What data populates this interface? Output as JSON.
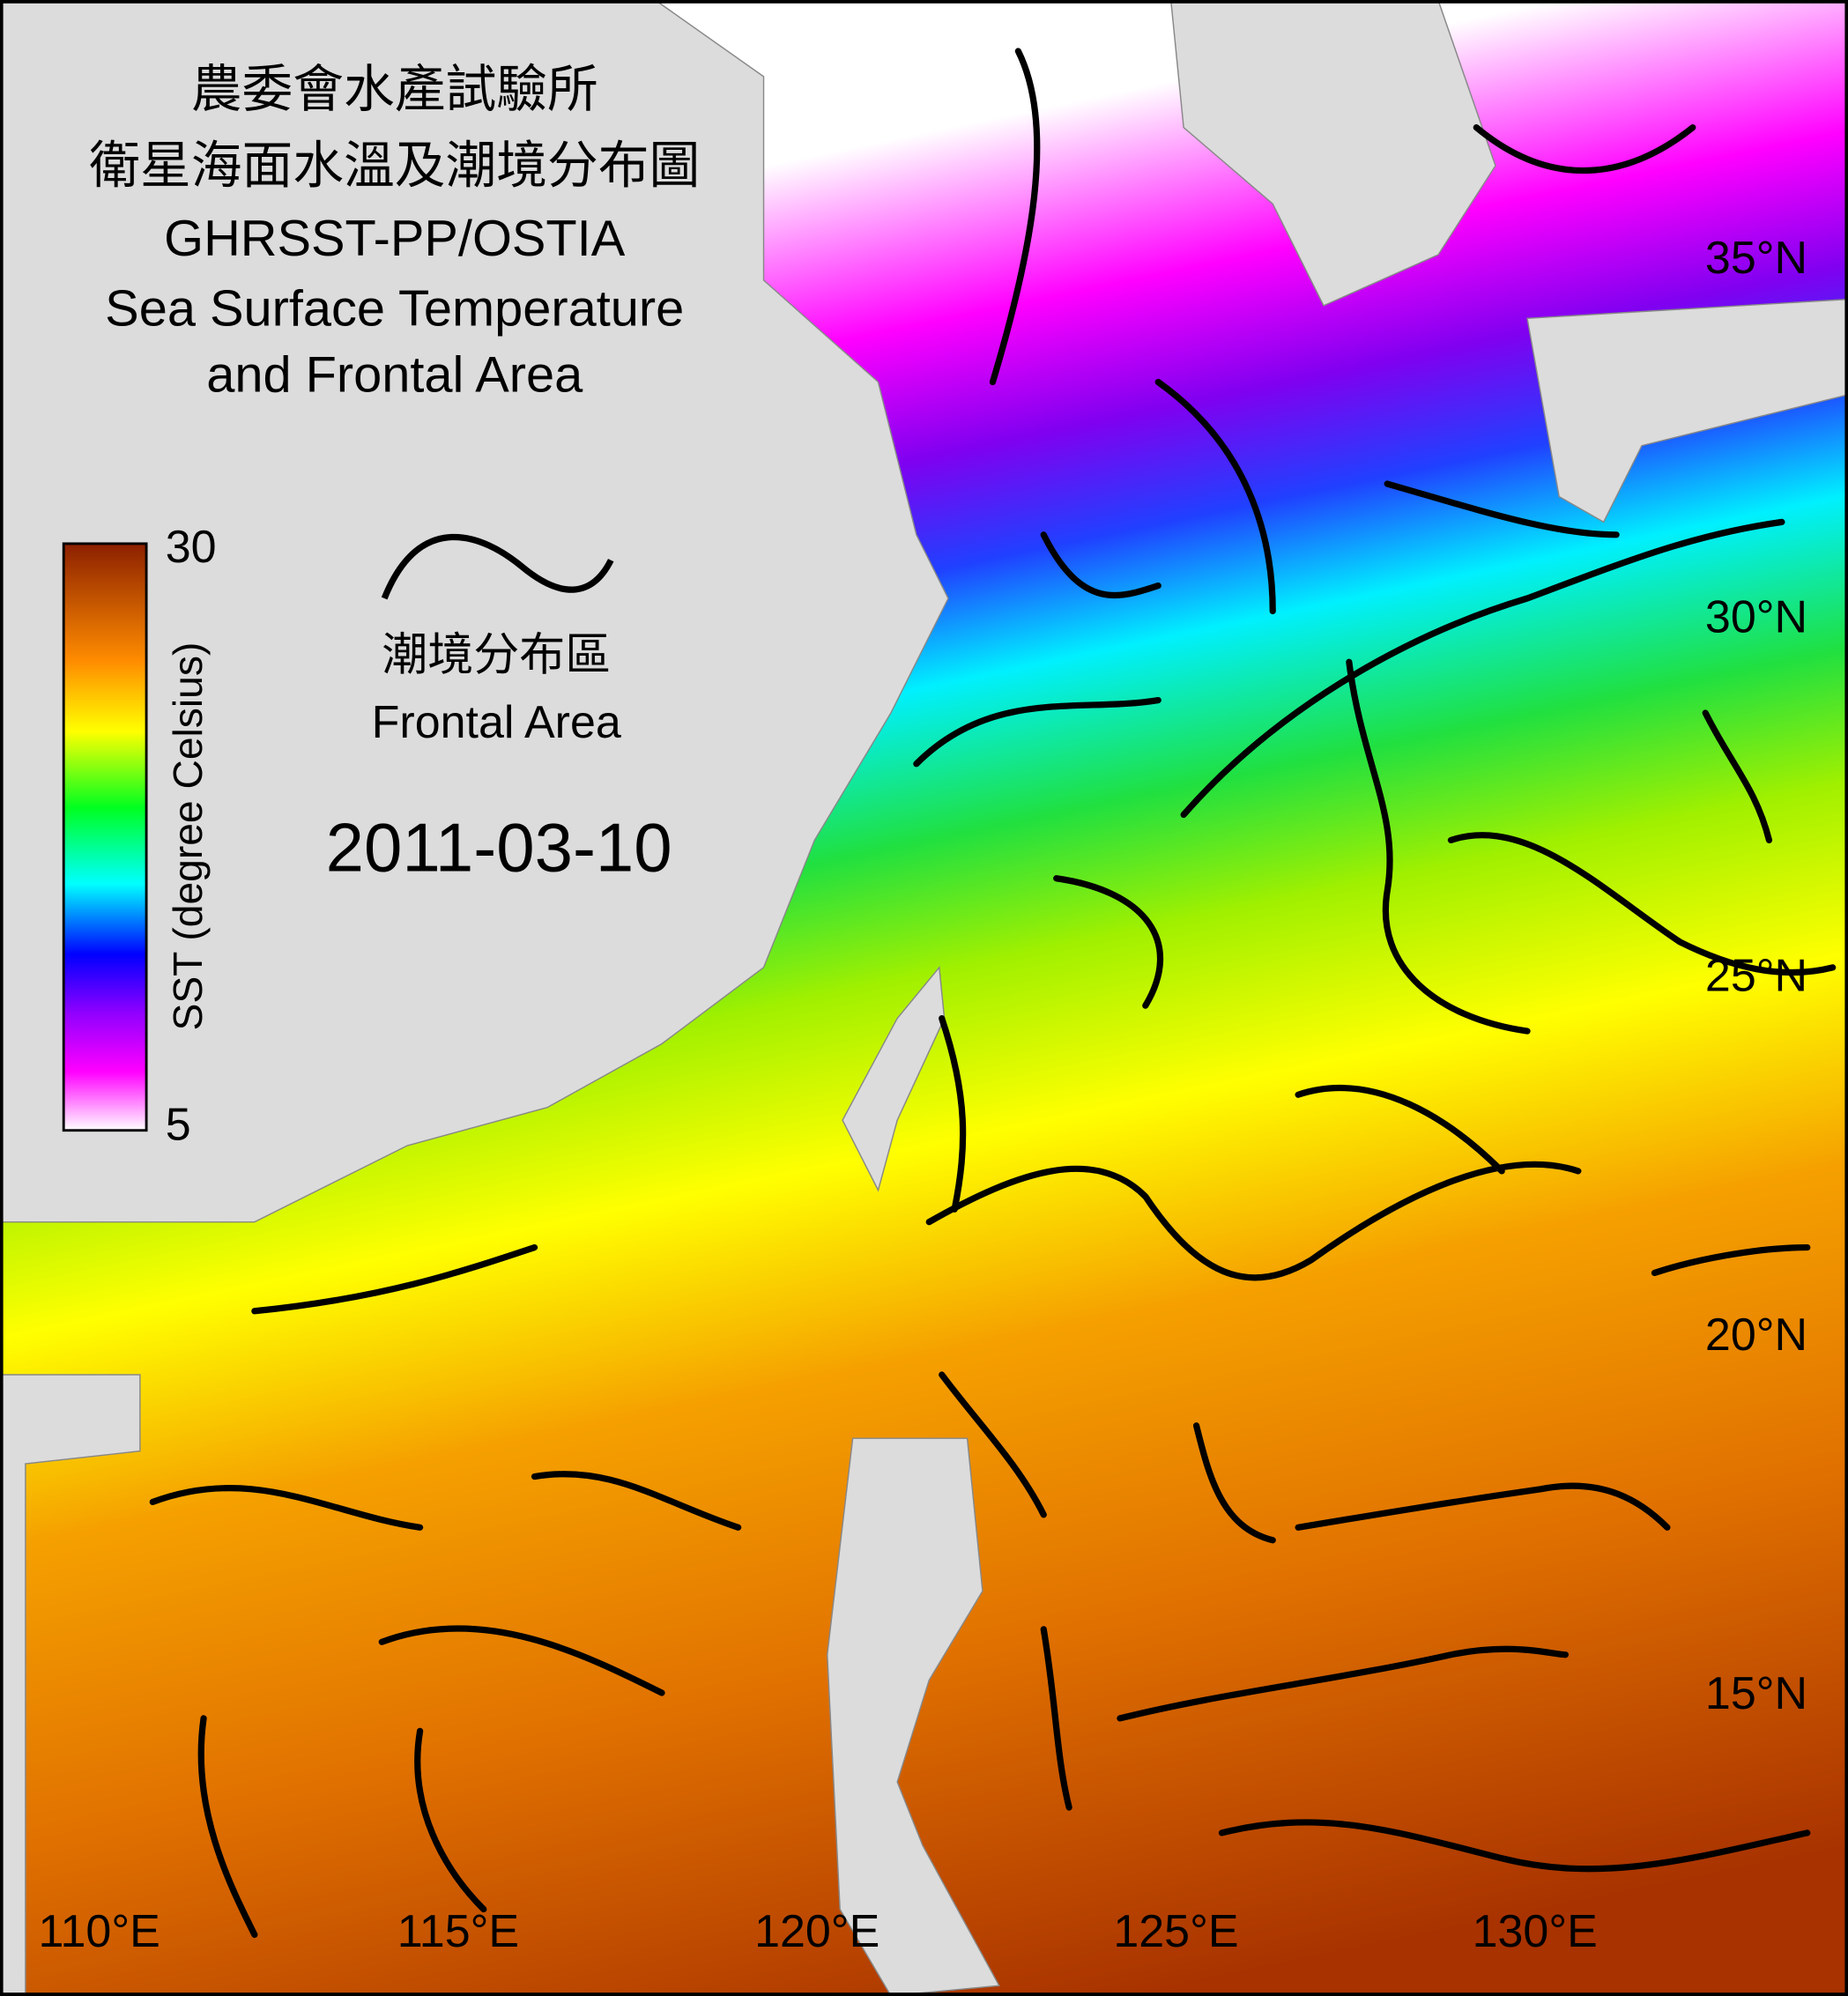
{
  "header": {
    "title_lines": [
      "農委會水產試驗所",
      "衛星海面水溫及潮境分布圖",
      "GHRSST-PP/OSTIA",
      "Sea Surface Temperature",
      "and Frontal Area"
    ]
  },
  "colorbar": {
    "max": 30,
    "min": 5,
    "label": "SST (degree Celsius)"
  },
  "legend": {
    "label_zh": "潮境分布區",
    "label_en": "Frontal Area"
  },
  "date": "2011-03-10",
  "lat_labels": [
    "35°N",
    "30°N",
    "25°N",
    "20°N",
    "15°N"
  ],
  "lon_labels": [
    "110°E",
    "115°E",
    "120°E",
    "125°E",
    "130°E"
  ]
}
